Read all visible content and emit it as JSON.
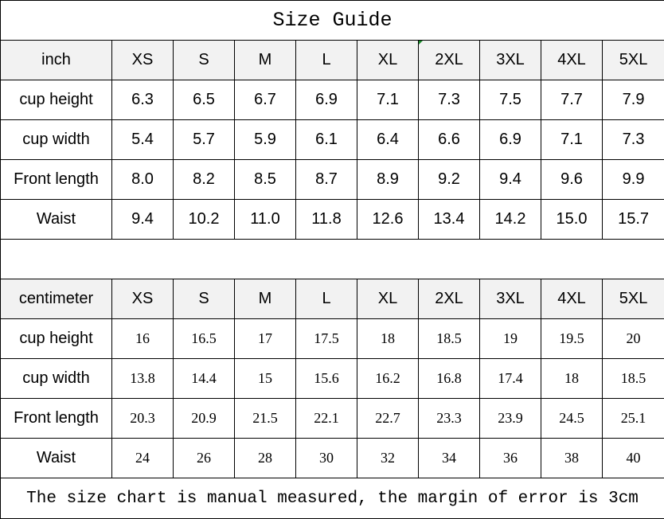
{
  "title": "Size Guide",
  "sizes": [
    "XS",
    "S",
    "M",
    "L",
    "XL",
    "2XL",
    "3XL",
    "4XL",
    "5XL"
  ],
  "inch": {
    "unit": "inch",
    "rows": [
      {
        "label": "cup height",
        "values": [
          "6.3",
          "6.5",
          "6.7",
          "6.9",
          "7.1",
          "7.3",
          "7.5",
          "7.7",
          "7.9"
        ]
      },
      {
        "label": "cup width",
        "values": [
          "5.4",
          "5.7",
          "5.9",
          "6.1",
          "6.4",
          "6.6",
          "6.9",
          "7.1",
          "7.3"
        ]
      },
      {
        "label": "Front length",
        "values": [
          "8.0",
          "8.2",
          "8.5",
          "8.7",
          "8.9",
          "9.2",
          "9.4",
          "9.6",
          "9.9"
        ]
      },
      {
        "label": "Waist",
        "values": [
          "9.4",
          "10.2",
          "11.0",
          "11.8",
          "12.6",
          "13.4",
          "14.2",
          "15.0",
          "15.7"
        ]
      }
    ]
  },
  "cm": {
    "unit": "centimeter",
    "rows": [
      {
        "label": "cup height",
        "values": [
          "16",
          "16.5",
          "17",
          "17.5",
          "18",
          "18.5",
          "19",
          "19.5",
          "20"
        ]
      },
      {
        "label": "cup width",
        "values": [
          "13.8",
          "14.4",
          "15",
          "15.6",
          "16.2",
          "16.8",
          "17.4",
          "18",
          "18.5"
        ]
      },
      {
        "label": "Front length",
        "values": [
          "20.3",
          "20.9",
          "21.5",
          "22.1",
          "22.7",
          "23.3",
          "23.9",
          "24.5",
          "25.1"
        ]
      },
      {
        "label": "Waist",
        "values": [
          "24",
          "26",
          "28",
          "30",
          "32",
          "34",
          "36",
          "38",
          "40"
        ]
      }
    ]
  },
  "footer": "The size chart is manual measured, the margin of error is 3cm",
  "colors": {
    "header_bg": "#f2f2f2",
    "border": "#000000"
  }
}
